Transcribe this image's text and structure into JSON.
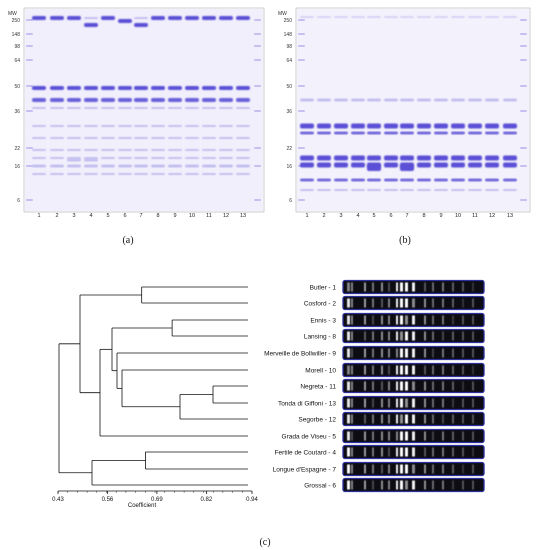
{
  "panel_a": {
    "caption": "(a)",
    "mw_title": "MW",
    "markers": [
      "250",
      "148",
      "98",
      "64",
      "50",
      "36",
      "22",
      "16",
      "6"
    ],
    "lanes": [
      "1",
      "2",
      "3",
      "4",
      "5",
      "6",
      "7",
      "8",
      "9",
      "10",
      "11",
      "12",
      "13"
    ]
  },
  "panel_b": {
    "caption": "(b)",
    "mw_title": "MW",
    "markers": [
      "250",
      "148",
      "98",
      "64",
      "50",
      "36",
      "22",
      "16",
      "6"
    ],
    "lanes": [
      "1",
      "2",
      "3",
      "4",
      "5",
      "6",
      "7",
      "8",
      "9",
      "10",
      "11",
      "12",
      "13"
    ]
  },
  "panel_c": {
    "caption": "(c)",
    "axis_label": "Coefficient",
    "ticks": [
      "0.43",
      "0.56",
      "0.69",
      "0.82",
      "0.94"
    ],
    "cultivars": [
      "Butler - 1",
      "Cosford - 2",
      "Ennis - 3",
      "Lansing - 8",
      "Merveille  de Bollwiller - 9",
      "Morell - 10",
      "Negreta - 11",
      "Tonda di Giffoni - 13",
      "Segorbe - 12",
      "Grada de Viseu - 5",
      "Fertile de Coutard - 4",
      "Longue d'Espagne - 7",
      "Grossal - 6"
    ]
  },
  "colors": {
    "gel_bg": "#f1effb",
    "band_strong": "#5a4fd6",
    "band_weak": "#c5c0f0",
    "strip_bg": "#0c0c12",
    "strip_border": "#2c2f9c",
    "tree_line": "#111111"
  }
}
